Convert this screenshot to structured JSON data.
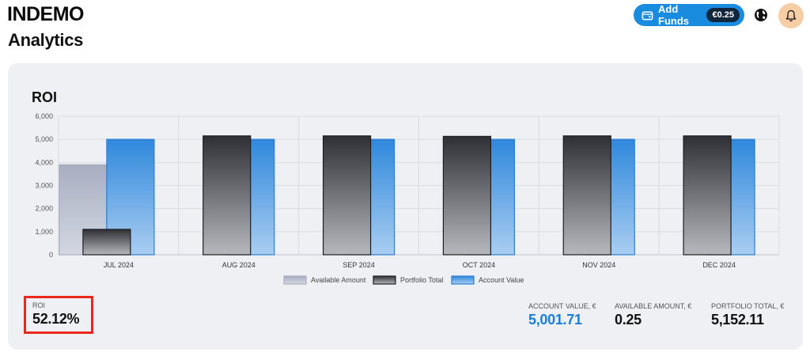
{
  "header": {
    "brand": "INDEMO",
    "page_title": "Analytics",
    "add_funds_label": "Add Funds",
    "balance": "€0.25",
    "icons": [
      "wallet-icon",
      "globe-icon",
      "bell-icon"
    ]
  },
  "chart_card": {
    "title": "ROI"
  },
  "chart_data": {
    "type": "bar",
    "title": "ROI",
    "categories": [
      "JUL 2024",
      "AUG 2024",
      "SEP 2024",
      "OCT 2024",
      "NOV 2024",
      "DEC 2024"
    ],
    "series": [
      {
        "name": "Available Amount",
        "values": [
          3900,
          0,
          0,
          0,
          0,
          0
        ],
        "color": "#b7bdcc"
      },
      {
        "name": "Portfolio Total",
        "values": [
          1100,
          5150,
          5150,
          5130,
          5150,
          5150
        ],
        "color": "#3a3b40"
      },
      {
        "name": "Account Value",
        "values": [
          5000,
          5000,
          5000,
          5000,
          5000,
          5000
        ],
        "color": "#3b8fde"
      }
    ],
    "yticks": [
      "0",
      "1,000",
      "2,000",
      "3,000",
      "4,000",
      "5,000",
      "6,000"
    ],
    "ylim": [
      0,
      6000
    ],
    "grid": true,
    "legend_position": "bottom"
  },
  "stats": {
    "roi_label": "ROI",
    "roi_value": "52.12%",
    "account_value_label": "ACCOUNT VALUE, €",
    "account_value": "5,001.71",
    "available_amount_label": "AVAILABLE AMOUNT, €",
    "available_amount": "0.25",
    "portfolio_total_label": "PORTFOLIO TOTAL, €",
    "portfolio_total": "5,152.11"
  },
  "colors": {
    "accent": "#1a8ce0",
    "highlight_border": "#e8291b",
    "card_bg": "#eff0f3"
  }
}
